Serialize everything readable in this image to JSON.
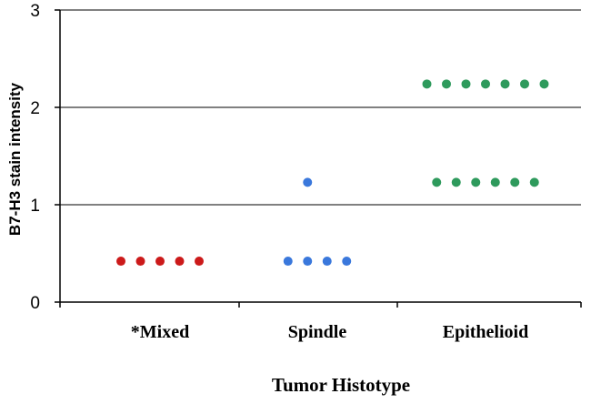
{
  "chart_data": {
    "type": "scatter",
    "title": "",
    "xlabel": "Tumor Histotype",
    "ylabel": "B7-H3 stain intensity",
    "categories": [
      "*Mixed",
      "Spindle",
      "Epithelioid"
    ],
    "ylim": [
      0,
      3
    ],
    "yticks": [
      0,
      1,
      2,
      3
    ],
    "grid": "horizontal",
    "legend": "none",
    "series": [
      {
        "category": "*Mixed",
        "color": "#cc1a1a",
        "points": [
          {
            "offset": -2,
            "y": 0.42
          },
          {
            "offset": -1,
            "y": 0.42
          },
          {
            "offset": 0,
            "y": 0.42
          },
          {
            "offset": 1,
            "y": 0.42
          },
          {
            "offset": 2,
            "y": 0.42
          }
        ]
      },
      {
        "category": "Spindle",
        "color": "#3a78dc",
        "points": [
          {
            "offset": -0.5,
            "y": 1.23
          },
          {
            "offset": -1.5,
            "y": 0.42
          },
          {
            "offset": -0.5,
            "y": 0.42
          },
          {
            "offset": 0.5,
            "y": 0.42
          },
          {
            "offset": 1.5,
            "y": 0.42
          }
        ]
      },
      {
        "category": "Epithelioid",
        "color": "#2e9a5c",
        "points": [
          {
            "offset": -3,
            "y": 2.24
          },
          {
            "offset": -2,
            "y": 2.24
          },
          {
            "offset": -1,
            "y": 2.24
          },
          {
            "offset": 0,
            "y": 2.24
          },
          {
            "offset": 1,
            "y": 2.24
          },
          {
            "offset": 2,
            "y": 2.24
          },
          {
            "offset": 3,
            "y": 2.24
          },
          {
            "offset": -2.5,
            "y": 1.23
          },
          {
            "offset": -1.5,
            "y": 1.23
          },
          {
            "offset": -0.5,
            "y": 1.23
          },
          {
            "offset": 0.5,
            "y": 1.23
          },
          {
            "offset": 1.5,
            "y": 1.23
          },
          {
            "offset": 2.5,
            "y": 1.23
          }
        ]
      }
    ]
  }
}
